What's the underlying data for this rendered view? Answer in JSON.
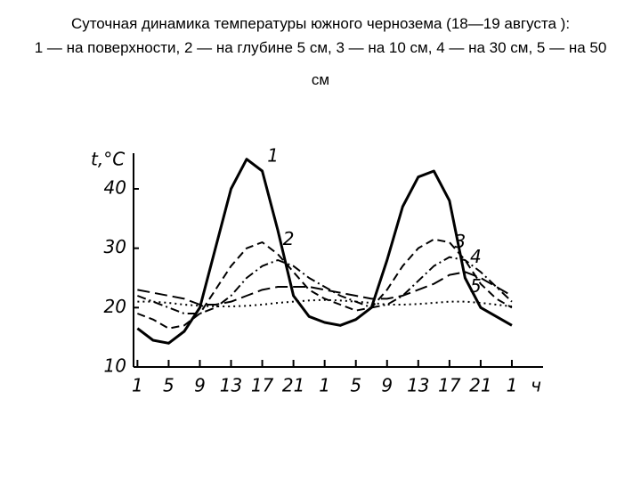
{
  "chart_data": {
    "type": "line",
    "title": "Суточная динамика температуры южного чернозема (18—19 августа ):",
    "subtitle": "1 — на поверхности, 2 — на глубине 5 см, 3 — на 10 см, 4 — на 30 см, 5 — на 50 см",
    "y_label": "t,°C",
    "x_label": "ч",
    "x": [
      1,
      3,
      5,
      7,
      9,
      11,
      13,
      15,
      17,
      19,
      21,
      23,
      25,
      27,
      29,
      31,
      33,
      35,
      37,
      39,
      41,
      43,
      45,
      47,
      49
    ],
    "series": [
      {
        "name": "1",
        "color": "#000000",
        "style": "solid",
        "values": [
          16.5,
          14.5,
          14,
          16,
          20,
          30,
          40,
          45,
          43,
          33,
          22,
          18.5,
          17.5,
          17,
          18,
          20,
          28,
          37,
          42,
          43,
          38,
          25,
          20,
          18.5,
          17
        ]
      },
      {
        "name": "2",
        "color": "#000000",
        "style": "dashed",
        "values": [
          19,
          18,
          16.5,
          17,
          19,
          23,
          27,
          30,
          31,
          29,
          26,
          23,
          21.5,
          20.5,
          19.5,
          20,
          23,
          27,
          30,
          31.5,
          31,
          28,
          24,
          21.5,
          20
        ]
      },
      {
        "name": "3",
        "color": "#000000",
        "style": "dashdot",
        "values": [
          22,
          21,
          20,
          19,
          19,
          20,
          22,
          25,
          27,
          28,
          27,
          25,
          23.5,
          22,
          21,
          20,
          20.5,
          22,
          24.5,
          27,
          28.5,
          28,
          26,
          23.5,
          21
        ]
      },
      {
        "name": "4",
        "color": "#000000",
        "style": "longdash",
        "values": [
          23,
          22.5,
          22,
          21.5,
          20.5,
          20.5,
          21,
          22,
          23,
          23.5,
          23.5,
          23.5,
          23,
          22.5,
          22,
          21.5,
          21.5,
          22,
          23,
          24,
          25.5,
          26,
          25,
          23.5,
          22
        ]
      },
      {
        "name": "5",
        "color": "#000000",
        "style": "dotted",
        "values": [
          21,
          21,
          20.8,
          20.5,
          20.3,
          20.2,
          20.2,
          20.3,
          20.5,
          20.8,
          21,
          21.2,
          21.3,
          21.2,
          21,
          20.8,
          20.5,
          20.5,
          20.6,
          20.8,
          21,
          21,
          20.8,
          20.5,
          20.2
        ]
      }
    ],
    "xlim": [
      0.5,
      53
    ],
    "xticks": [
      1,
      5,
      9,
      13,
      17,
      21,
      {
        "value": 25,
        "label": "1"
      },
      {
        "value": 29,
        "label": "5"
      },
      {
        "value": 33,
        "label": "9"
      },
      {
        "value": 37,
        "label": "13"
      },
      {
        "value": 41,
        "label": "17"
      },
      {
        "value": 45,
        "label": "21"
      },
      {
        "value": 49,
        "label": "1"
      }
    ],
    "ylim": [
      10,
      46
    ],
    "yticks": [
      10,
      20,
      30,
      40
    ],
    "grid": false
  }
}
